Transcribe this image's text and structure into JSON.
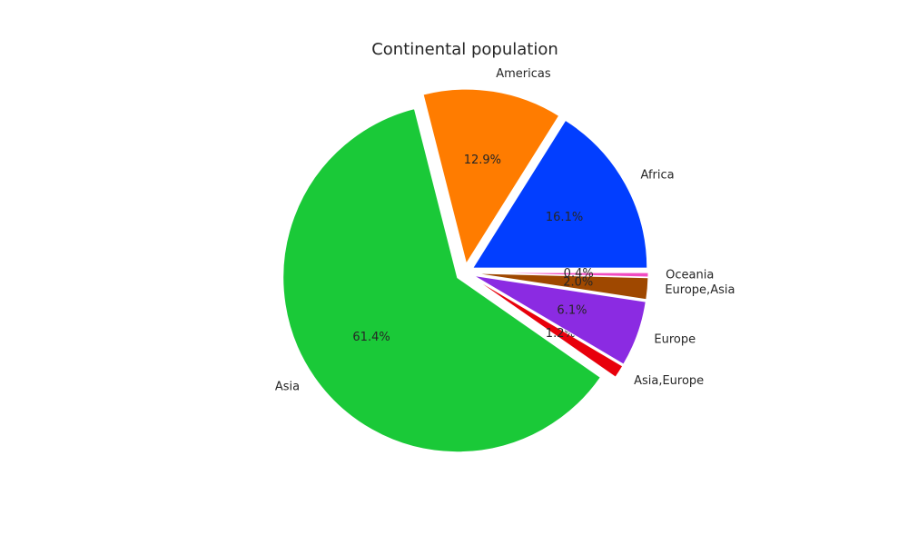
{
  "chart_data": {
    "type": "pie",
    "title": "Continental population",
    "slices": [
      {
        "label": "Africa",
        "percent": 16.1,
        "percent_label": "16.1%",
        "color": "#023eff"
      },
      {
        "label": "Americas",
        "percent": 12.9,
        "percent_label": "12.9%",
        "color": "#ff7c00"
      },
      {
        "label": "Asia",
        "percent": 61.4,
        "percent_label": "61.4%",
        "color": "#1ac938"
      },
      {
        "label": "Asia,Europe",
        "percent": 1.2,
        "percent_label": "1.2%",
        "color": "#e8000b"
      },
      {
        "label": "Europe",
        "percent": 6.1,
        "percent_label": "6.1%",
        "color": "#8b2be2"
      },
      {
        "label": "Europe,Asia",
        "percent": 2.0,
        "percent_label": "2.0%",
        "color": "#9f4800"
      },
      {
        "label": "Oceania",
        "percent": 0.4,
        "percent_label": "0.4%",
        "color": "#f14cc1"
      }
    ],
    "start_angle": 0,
    "direction": "counterclockwise",
    "exploded": true,
    "legend": "none"
  }
}
